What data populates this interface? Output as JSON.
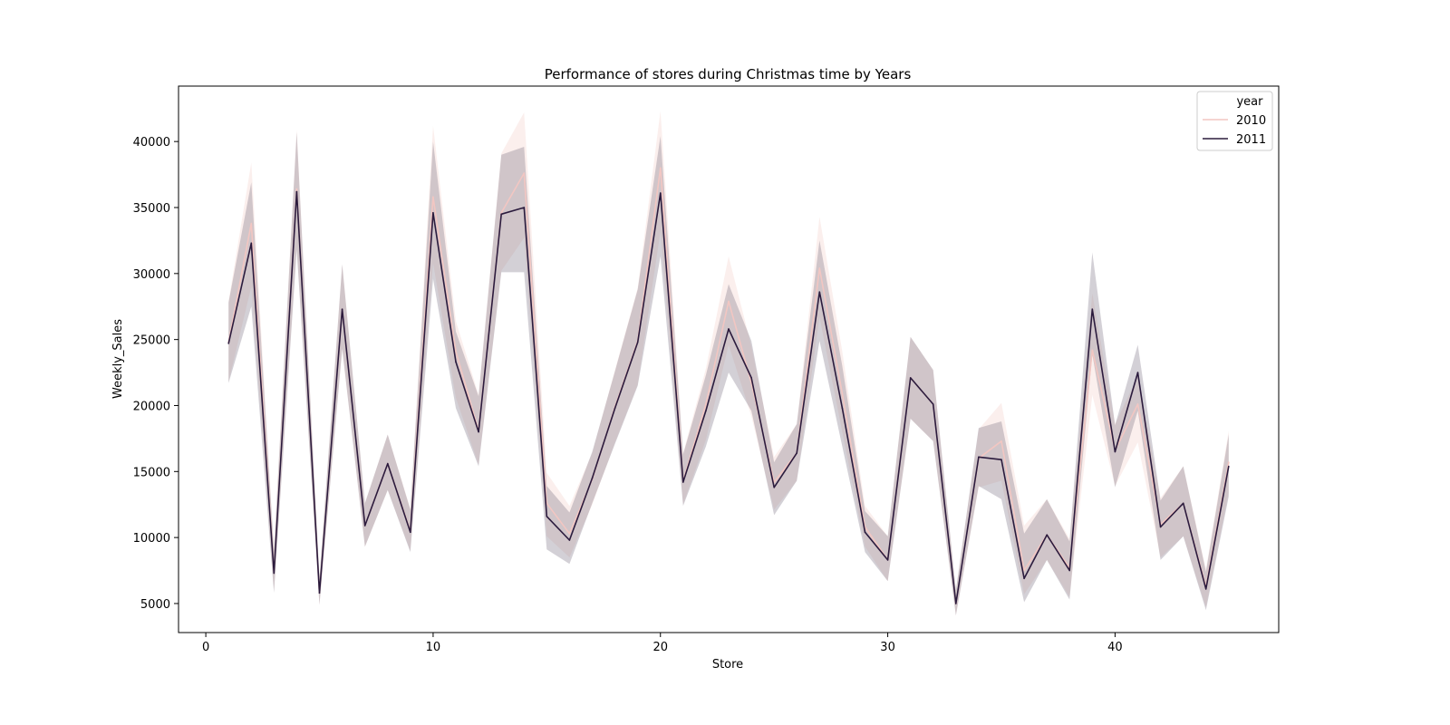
{
  "chart_data": {
    "type": "line",
    "title": "Performance of stores during Christmas time by Years",
    "xlabel": "Store",
    "ylabel": "Weekly_Sales",
    "xlim": [
      -1.2,
      47.2
    ],
    "ylim": [
      2800,
      44200
    ],
    "xticks": [
      0,
      10,
      20,
      30,
      40
    ],
    "yticks": [
      5000,
      10000,
      15000,
      20000,
      25000,
      30000,
      35000,
      40000
    ],
    "grid": false,
    "legend": {
      "title": "year",
      "placement": "top-right"
    },
    "x": [
      1,
      2,
      3,
      4,
      5,
      6,
      7,
      8,
      9,
      10,
      11,
      12,
      13,
      14,
      15,
      16,
      17,
      18,
      19,
      20,
      21,
      22,
      23,
      24,
      25,
      26,
      27,
      28,
      29,
      30,
      31,
      32,
      33,
      34,
      35,
      36,
      37,
      38,
      39,
      40,
      41,
      42,
      43,
      44,
      45
    ],
    "series": [
      {
        "name": "2010",
        "color": "#f2c6c2",
        "band_color": "#f7e0dc",
        "values": [
          24800,
          33800,
          7400,
          36400,
          5800,
          27300,
          10900,
          15600,
          10500,
          35800,
          24100,
          18100,
          34600,
          37600,
          12600,
          10300,
          14400,
          19900,
          24900,
          38000,
          14300,
          20100,
          27900,
          21700,
          14200,
          16400,
          30400,
          20900,
          10800,
          8300,
          22100,
          20100,
          5000,
          16000,
          17300,
          7500,
          10200,
          7700,
          24200,
          16600,
          20100,
          11000,
          12600,
          6300,
          15700
        ],
        "lower": [
          21800,
          29000,
          5900,
          32000,
          4900,
          24300,
          9300,
          13600,
          9000,
          30800,
          20600,
          15500,
          30200,
          32700,
          10100,
          8500,
          12500,
          17200,
          21600,
          33200,
          12500,
          17400,
          24600,
          19200,
          12100,
          14300,
          26700,
          18000,
          9300,
          6700,
          19000,
          17300,
          4100,
          13800,
          14300,
          5700,
          8300,
          5500,
          20800,
          13900,
          17200,
          8500,
          10100,
          4700,
          13400
        ],
        "upper": [
          27900,
          38400,
          9100,
          40900,
          6900,
          30700,
          12600,
          17800,
          12200,
          41200,
          26400,
          20800,
          39100,
          42200,
          14900,
          12400,
          16400,
          22700,
          28900,
          42300,
          16400,
          22800,
          31300,
          24500,
          16100,
          18600,
          34300,
          24100,
          12400,
          10100,
          25200,
          22700,
          6000,
          18200,
          20200,
          10900,
          12900,
          9900,
          28500,
          18600,
          22200,
          13000,
          15400,
          7600,
          18100
        ]
      },
      {
        "name": "2011",
        "color": "#2b1b3d",
        "band_color": "#6e6478",
        "values": [
          24700,
          32300,
          7300,
          36200,
          5800,
          27300,
          10900,
          15600,
          10400,
          34600,
          23300,
          18000,
          34500,
          35000,
          11600,
          9800,
          14500,
          19800,
          24800,
          36100,
          14200,
          19600,
          25800,
          22100,
          13800,
          16400,
          28600,
          19800,
          10400,
          8300,
          22100,
          20100,
          5000,
          16100,
          15900,
          6900,
          10200,
          7500,
          27300,
          16500,
          22500,
          10800,
          12600,
          6100,
          15400
        ]
      }
    ]
  }
}
